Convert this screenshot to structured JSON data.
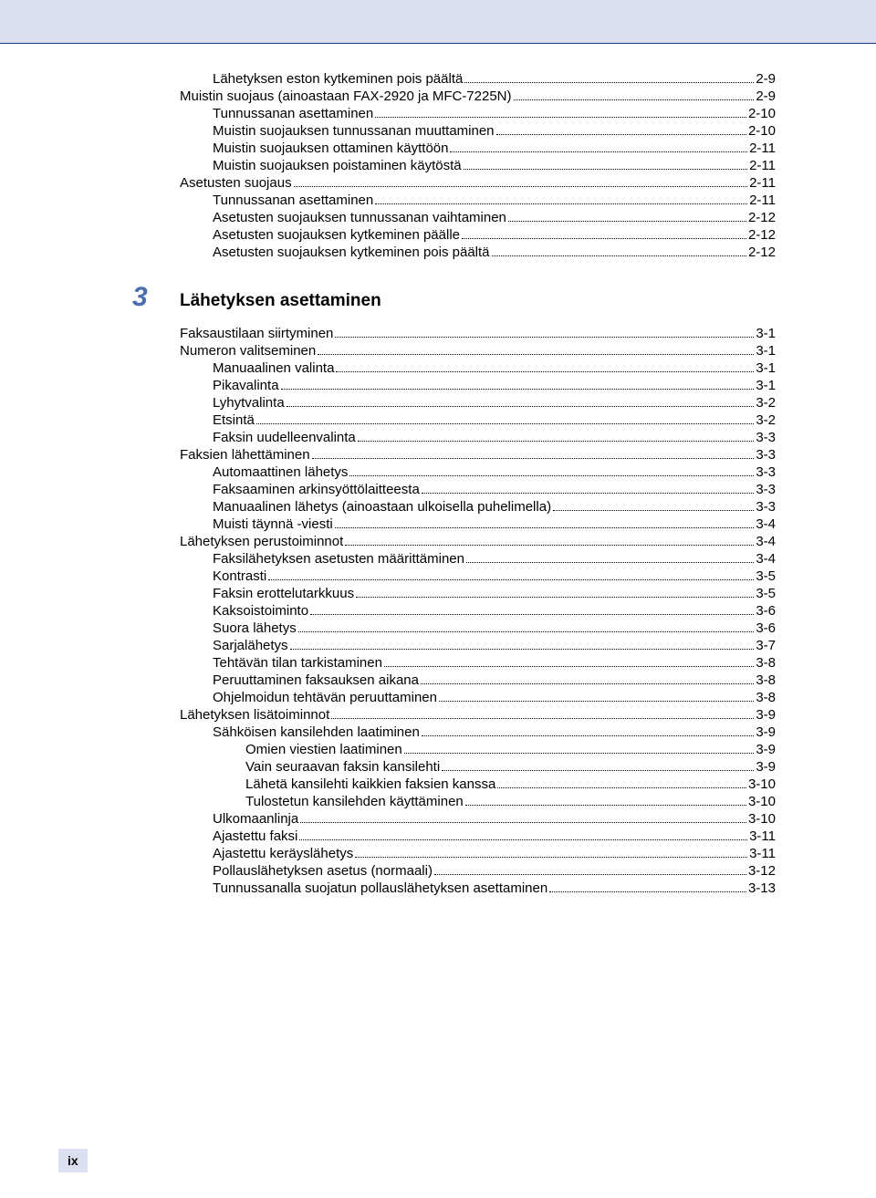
{
  "colors": {
    "header_bg": "#dcdff0",
    "header_border": "#1a3a8a",
    "chapter_num": "#4a6db0",
    "text": "#000000",
    "bg": "#ffffff"
  },
  "fonts": {
    "body_size": 15,
    "chapter_num_size": 30,
    "chapter_title_size": 19,
    "footer_size": 14
  },
  "section1": [
    {
      "indent": 2,
      "label": "Lähetyksen eston kytkeminen pois päältä",
      "page": "2-9"
    },
    {
      "indent": 1,
      "label": "Muistin suojaus (ainoastaan FAX-2920 ja MFC-7225N)",
      "page": "2-9"
    },
    {
      "indent": 2,
      "label": "Tunnussanan asettaminen",
      "page": "2-10"
    },
    {
      "indent": 2,
      "label": "Muistin suojauksen tunnussanan muuttaminen",
      "page": "2-10"
    },
    {
      "indent": 2,
      "label": "Muistin suojauksen ottaminen käyttöön",
      "page": "2-11"
    },
    {
      "indent": 2,
      "label": "Muistin suojauksen poistaminen käytöstä",
      "page": "2-11"
    },
    {
      "indent": 1,
      "label": "Asetusten suojaus",
      "page": "2-11"
    },
    {
      "indent": 2,
      "label": "Tunnussanan asettaminen",
      "page": "2-11"
    },
    {
      "indent": 2,
      "label": "Asetusten suojauksen tunnussanan vaihtaminen",
      "page": "2-12"
    },
    {
      "indent": 2,
      "label": "Asetusten suojauksen kytkeminen päälle",
      "page": "2-12"
    },
    {
      "indent": 2,
      "label": "Asetusten suojauksen kytkeminen pois päältä",
      "page": "2-12"
    }
  ],
  "chapter": {
    "num": "3",
    "title": "Lähetyksen asettaminen"
  },
  "section2": [
    {
      "indent": 1,
      "label": "Faksaustilaan siirtyminen",
      "page": "3-1"
    },
    {
      "indent": 1,
      "label": "Numeron valitseminen",
      "page": "3-1"
    },
    {
      "indent": 2,
      "label": "Manuaalinen valinta",
      "page": "3-1"
    },
    {
      "indent": 2,
      "label": "Pikavalinta",
      "page": "3-1"
    },
    {
      "indent": 2,
      "label": "Lyhytvalinta",
      "page": "3-2"
    },
    {
      "indent": 2,
      "label": "Etsintä",
      "page": "3-2"
    },
    {
      "indent": 2,
      "label": "Faksin uudelleenvalinta",
      "page": "3-3"
    },
    {
      "indent": 1,
      "label": "Faksien lähettäminen",
      "page": "3-3"
    },
    {
      "indent": 2,
      "label": "Automaattinen lähetys",
      "page": "3-3"
    },
    {
      "indent": 2,
      "label": "Faksaaminen arkinsyöttölaitteesta",
      "page": "3-3"
    },
    {
      "indent": 2,
      "label": "Manuaalinen lähetys (ainoastaan ulkoisella puhelimella)",
      "page": "3-3"
    },
    {
      "indent": 2,
      "label": "Muisti täynnä -viesti",
      "page": "3-4"
    },
    {
      "indent": 1,
      "label": "Lähetyksen perustoiminnot",
      "page": "3-4"
    },
    {
      "indent": 2,
      "label": "Faksilähetyksen asetusten määrittäminen",
      "page": "3-4"
    },
    {
      "indent": 2,
      "label": "Kontrasti",
      "page": "3-5"
    },
    {
      "indent": 2,
      "label": "Faksin erottelutarkkuus",
      "page": "3-5"
    },
    {
      "indent": 2,
      "label": "Kaksoistoiminto",
      "page": "3-6"
    },
    {
      "indent": 2,
      "label": "Suora lähetys",
      "page": "3-6"
    },
    {
      "indent": 2,
      "label": "Sarjalähetys",
      "page": "3-7"
    },
    {
      "indent": 2,
      "label": "Tehtävän tilan tarkistaminen",
      "page": "3-8"
    },
    {
      "indent": 2,
      "label": "Peruuttaminen faksauksen aikana",
      "page": "3-8"
    },
    {
      "indent": 2,
      "label": "Ohjelmoidun tehtävän peruuttaminen",
      "page": "3-8"
    },
    {
      "indent": 1,
      "label": "Lähetyksen lisätoiminnot",
      "page": "3-9"
    },
    {
      "indent": 2,
      "label": "Sähköisen kansilehden laatiminen",
      "page": "3-9"
    },
    {
      "indent": 3,
      "label": "Omien viestien laatiminen",
      "page": "3-9"
    },
    {
      "indent": 3,
      "label": "Vain seuraavan faksin kansilehti",
      "page": "3-9"
    },
    {
      "indent": 3,
      "label": "Lähetä kansilehti kaikkien faksien kanssa",
      "page": "3-10"
    },
    {
      "indent": 3,
      "label": "Tulostetun kansilehden käyttäminen",
      "page": "3-10"
    },
    {
      "indent": 2,
      "label": "Ulkomaanlinja",
      "page": "3-10"
    },
    {
      "indent": 2,
      "label": "Ajastettu faksi",
      "page": "3-11"
    },
    {
      "indent": 2,
      "label": "Ajastettu keräyslähetys",
      "page": "3-11"
    },
    {
      "indent": 2,
      "label": "Pollauslähetyksen asetus (normaali)",
      "page": "3-12"
    },
    {
      "indent": 2,
      "label": "Tunnussanalla suojatun pollauslähetyksen asettaminen",
      "page": "3-13"
    }
  ],
  "footer": "ix"
}
